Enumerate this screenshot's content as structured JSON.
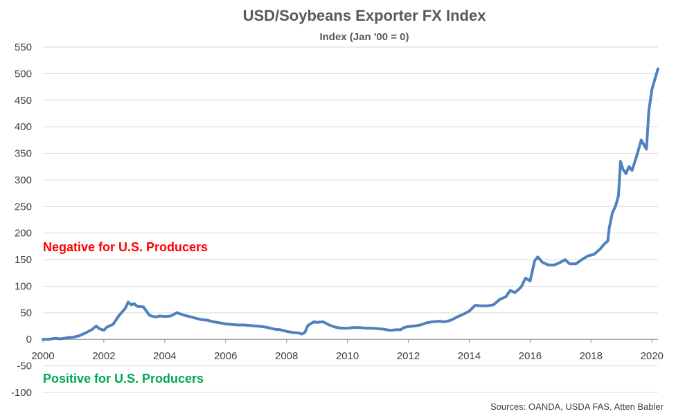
{
  "chart_data": {
    "type": "line",
    "title": "USD/Soybeans Exporter FX Index",
    "subtitle": "Index (Jan '00 = 0)",
    "xlabel": "",
    "ylabel": "",
    "ylim": [
      -100,
      550
    ],
    "yticks": [
      550,
      500,
      450,
      400,
      350,
      300,
      250,
      200,
      150,
      100,
      50,
      0,
      -50,
      -100
    ],
    "xlim": [
      2000,
      2020.2
    ],
    "xticks": [
      "2000",
      "2002",
      "2004",
      "2006",
      "2008",
      "2010",
      "2012",
      "2014",
      "2016",
      "2018",
      "2020"
    ],
    "grid": true,
    "legend": "none",
    "annotations": {
      "negative": "Negative for U.S. Producers",
      "positive": "Positive for U.S. Producers",
      "negative_color": "#ff0000",
      "positive_color": "#00a651"
    },
    "source": "Sources: OANDA, USDA FAS, Atten Babler",
    "series": [
      {
        "color": "#4f81bd",
        "points": [
          [
            2000.0,
            0
          ],
          [
            2000.2,
            0
          ],
          [
            2000.4,
            2
          ],
          [
            2000.6,
            1
          ],
          [
            2000.8,
            3
          ],
          [
            2001.0,
            4
          ],
          [
            2001.2,
            7
          ],
          [
            2001.4,
            12
          ],
          [
            2001.6,
            18
          ],
          [
            2001.75,
            25
          ],
          [
            2001.85,
            20
          ],
          [
            2002.0,
            17
          ],
          [
            2002.1,
            23
          ],
          [
            2002.3,
            28
          ],
          [
            2002.5,
            45
          ],
          [
            2002.7,
            58
          ],
          [
            2002.8,
            70
          ],
          [
            2002.9,
            65
          ],
          [
            2003.0,
            67
          ],
          [
            2003.1,
            62
          ],
          [
            2003.3,
            61
          ],
          [
            2003.5,
            45
          ],
          [
            2003.7,
            42
          ],
          [
            2003.85,
            44
          ],
          [
            2004.0,
            43
          ],
          [
            2004.2,
            44
          ],
          [
            2004.4,
            50
          ],
          [
            2004.6,
            46
          ],
          [
            2004.8,
            43
          ],
          [
            2005.0,
            40
          ],
          [
            2005.2,
            37
          ],
          [
            2005.4,
            36
          ],
          [
            2005.6,
            33
          ],
          [
            2005.8,
            31
          ],
          [
            2006.0,
            29
          ],
          [
            2006.2,
            28
          ],
          [
            2006.4,
            27
          ],
          [
            2006.6,
            27
          ],
          [
            2006.8,
            26
          ],
          [
            2007.0,
            25
          ],
          [
            2007.2,
            24
          ],
          [
            2007.4,
            22
          ],
          [
            2007.6,
            19
          ],
          [
            2007.8,
            18
          ],
          [
            2008.0,
            15
          ],
          [
            2008.2,
            13
          ],
          [
            2008.4,
            12
          ],
          [
            2008.5,
            10
          ],
          [
            2008.6,
            13
          ],
          [
            2008.7,
            26
          ],
          [
            2008.9,
            33
          ],
          [
            2009.0,
            32
          ],
          [
            2009.2,
            33
          ],
          [
            2009.4,
            27
          ],
          [
            2009.6,
            23
          ],
          [
            2009.8,
            21
          ],
          [
            2010.0,
            21
          ],
          [
            2010.2,
            22
          ],
          [
            2010.4,
            22
          ],
          [
            2010.6,
            21
          ],
          [
            2010.8,
            21
          ],
          [
            2011.0,
            20
          ],
          [
            2011.2,
            19
          ],
          [
            2011.4,
            17
          ],
          [
            2011.6,
            18
          ],
          [
            2011.75,
            18
          ],
          [
            2011.85,
            22
          ],
          [
            2012.0,
            24
          ],
          [
            2012.2,
            25
          ],
          [
            2012.4,
            27
          ],
          [
            2012.6,
            31
          ],
          [
            2012.8,
            33
          ],
          [
            2013.0,
            34
          ],
          [
            2013.2,
            33
          ],
          [
            2013.4,
            36
          ],
          [
            2013.6,
            42
          ],
          [
            2013.8,
            47
          ],
          [
            2014.0,
            53
          ],
          [
            2014.2,
            64
          ],
          [
            2014.4,
            63
          ],
          [
            2014.6,
            63
          ],
          [
            2014.8,
            65
          ],
          [
            2015.0,
            75
          ],
          [
            2015.2,
            80
          ],
          [
            2015.35,
            92
          ],
          [
            2015.5,
            88
          ],
          [
            2015.7,
            98
          ],
          [
            2015.85,
            115
          ],
          [
            2016.0,
            110
          ],
          [
            2016.15,
            148
          ],
          [
            2016.25,
            155
          ],
          [
            2016.4,
            145
          ],
          [
            2016.6,
            140
          ],
          [
            2016.8,
            140
          ],
          [
            2017.0,
            145
          ],
          [
            2017.15,
            150
          ],
          [
            2017.3,
            142
          ],
          [
            2017.5,
            142
          ],
          [
            2017.7,
            150
          ],
          [
            2017.9,
            157
          ],
          [
            2018.1,
            160
          ],
          [
            2018.3,
            170
          ],
          [
            2018.45,
            180
          ],
          [
            2018.55,
            185
          ],
          [
            2018.6,
            210
          ],
          [
            2018.7,
            238
          ],
          [
            2018.8,
            250
          ],
          [
            2018.9,
            270
          ],
          [
            2018.97,
            335
          ],
          [
            2019.05,
            320
          ],
          [
            2019.15,
            312
          ],
          [
            2019.25,
            325
          ],
          [
            2019.35,
            318
          ],
          [
            2019.5,
            345
          ],
          [
            2019.65,
            375
          ],
          [
            2019.75,
            365
          ],
          [
            2019.82,
            358
          ],
          [
            2019.9,
            430
          ],
          [
            2020.0,
            470
          ],
          [
            2020.1,
            490
          ],
          [
            2020.2,
            509
          ]
        ]
      }
    ]
  }
}
